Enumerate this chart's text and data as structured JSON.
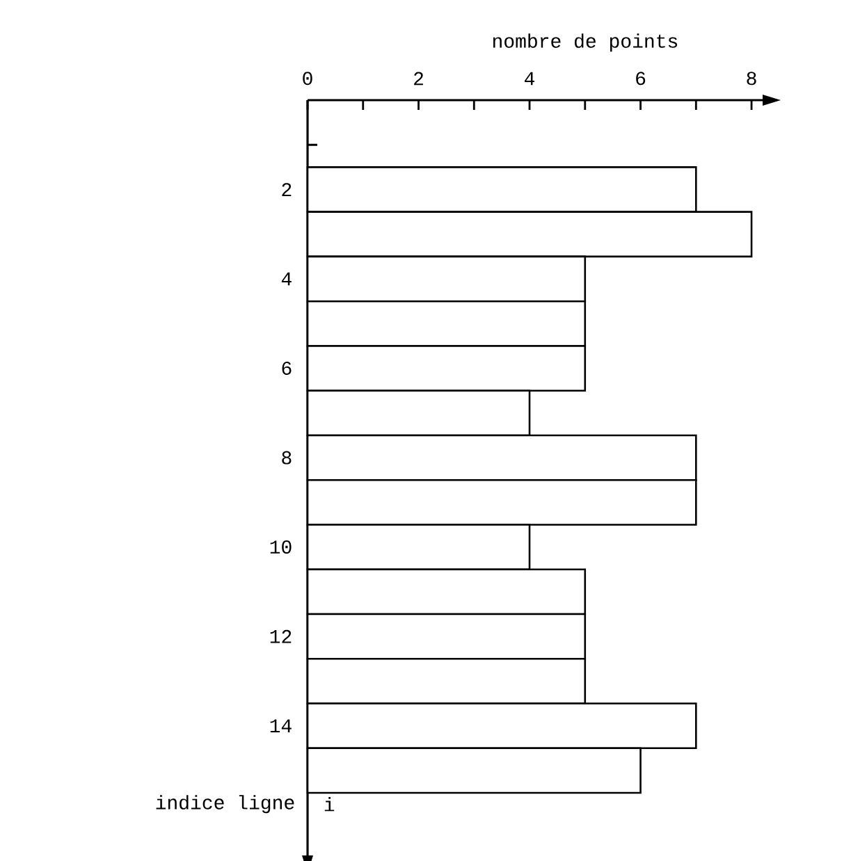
{
  "chart_data": {
    "type": "bar",
    "orientation": "horizontal",
    "xlabel": "nombre de points",
    "ylabel": "indice ligne",
    "annotations": [
      "i"
    ],
    "x": [
      2,
      3,
      4,
      5,
      6,
      7,
      8,
      9,
      10,
      11,
      12,
      13,
      14,
      15
    ],
    "values": [
      7,
      8,
      5,
      5,
      5,
      4,
      7,
      7,
      4,
      5,
      5,
      5,
      7,
      6
    ],
    "color": "#ffffff",
    "xlim": [
      0,
      8.2
    ],
    "xticks": [
      0,
      {
        "value": 1,
        "label": null
      },
      2,
      {
        "value": 3,
        "label": null
      },
      4,
      {
        "value": 5,
        "label": null
      },
      6,
      {
        "value": 7,
        "label": null
      },
      8
    ],
    "ylim": [
      16.9,
      0
    ],
    "yticks": [
      {
        "value": 1,
        "label": null
      },
      2,
      {
        "value": 3,
        "label": null
      },
      4,
      {
        "value": 5,
        "label": null
      },
      6,
      {
        "value": 7,
        "label": null
      },
      8,
      {
        "value": 9,
        "label": null
      },
      10,
      {
        "value": 11,
        "label": null
      },
      12,
      {
        "value": 13,
        "label": null
      },
      14,
      {
        "value": 15,
        "label": null
      }
    ],
    "grid": false
  }
}
